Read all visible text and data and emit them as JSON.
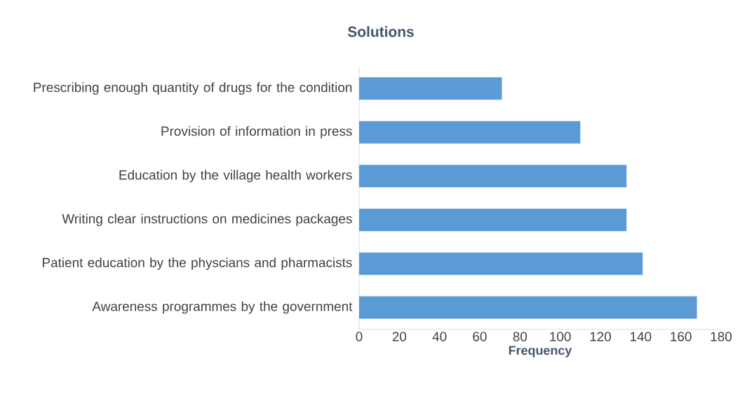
{
  "chart_data": {
    "type": "bar",
    "orientation": "horizontal",
    "title": "Solutions",
    "xlabel": "Frequency",
    "categories": [
      "Prescribing enough quantity of drugs for the condition",
      "Provision of information in press",
      "Education by the village health workers",
      "Writing clear instructions on medicines packages",
      "Patient education by the physcians and pharmacists",
      "Awareness programmes by the government"
    ],
    "values": [
      71,
      110,
      133,
      133,
      141,
      168
    ],
    "color": "#5b9bd5",
    "xlim": [
      0,
      180
    ],
    "xticks": [
      0,
      20,
      40,
      60,
      80,
      100,
      120,
      140,
      160,
      180
    ],
    "grid": false
  }
}
